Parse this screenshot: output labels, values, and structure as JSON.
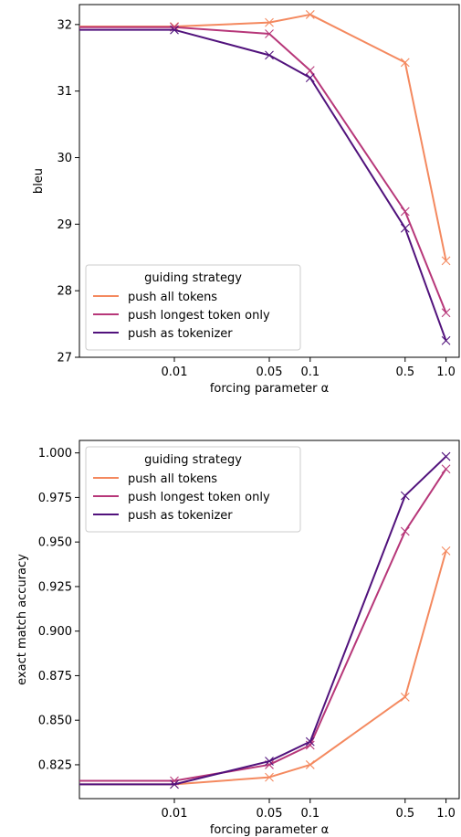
{
  "chart_data": [
    {
      "type": "line",
      "xlabel": "forcing parameter α",
      "ylabel": "bleu",
      "xscale": "log",
      "xlim": [
        0.002,
        1.25
      ],
      "ylim": [
        27.0,
        32.3
      ],
      "x": [
        0.002,
        0.01,
        0.05,
        0.1,
        0.5,
        1.0
      ],
      "xticks": [
        0.01,
        0.05,
        0.1,
        0.5,
        1.0
      ],
      "xtick_labels": [
        "0.01",
        "0.05",
        "0.1",
        "0.5",
        "1.0"
      ],
      "yticks": [
        27,
        28,
        29,
        30,
        31,
        32
      ],
      "ytick_labels": [
        "27",
        "28",
        "29",
        "30",
        "31",
        "32"
      ],
      "marker": "x",
      "legend": {
        "title": "guiding strategy",
        "placement": "lower-left"
      },
      "series": [
        {
          "name": "push all tokens",
          "color": "#f4895f",
          "values": [
            31.97,
            31.97,
            32.03,
            32.15,
            31.43,
            28.45
          ]
        },
        {
          "name": "push longest token only",
          "color": "#b73779",
          "values": [
            31.96,
            31.96,
            31.86,
            31.31,
            29.19,
            27.67
          ]
        },
        {
          "name": "push as tokenizer",
          "color": "#51127c",
          "values": [
            31.92,
            31.92,
            31.54,
            31.2,
            28.94,
            27.25
          ]
        }
      ]
    },
    {
      "type": "line",
      "xlabel": "forcing parameter α",
      "ylabel": "exact match accuracy",
      "xscale": "log",
      "xlim": [
        0.002,
        1.25
      ],
      "ylim": [
        0.806,
        1.007
      ],
      "x": [
        0.002,
        0.01,
        0.05,
        0.1,
        0.5,
        1.0
      ],
      "xticks": [
        0.01,
        0.05,
        0.1,
        0.5,
        1.0
      ],
      "xtick_labels": [
        "0.01",
        "0.05",
        "0.1",
        "0.5",
        "1.0"
      ],
      "yticks": [
        0.825,
        0.85,
        0.875,
        0.9,
        0.925,
        0.95,
        0.975,
        1.0
      ],
      "ytick_labels": [
        "0.825",
        "0.850",
        "0.875",
        "0.900",
        "0.925",
        "0.950",
        "0.975",
        "1.000"
      ],
      "marker": "x",
      "legend": {
        "title": "guiding strategy",
        "placement": "upper-left"
      },
      "series": [
        {
          "name": "push all tokens",
          "color": "#f4895f",
          "values": [
            0.814,
            0.814,
            0.818,
            0.825,
            0.863,
            0.945
          ]
        },
        {
          "name": "push longest token only",
          "color": "#b73779",
          "values": [
            0.816,
            0.816,
            0.825,
            0.836,
            0.956,
            0.991
          ]
        },
        {
          "name": "push as tokenizer",
          "color": "#51127c",
          "values": [
            0.814,
            0.814,
            0.827,
            0.838,
            0.976,
            0.998
          ]
        }
      ]
    }
  ]
}
